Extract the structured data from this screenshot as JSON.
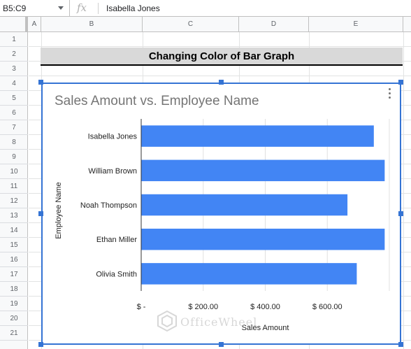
{
  "formula_bar": {
    "name_box": "B5:C9",
    "fx_label": "fx",
    "formula": "Isabella Jones"
  },
  "columns": [
    "A",
    "B",
    "C",
    "D",
    "E"
  ],
  "rows": [
    "1",
    "2",
    "3",
    "4",
    "5",
    "6",
    "7",
    "8",
    "9",
    "10",
    "11",
    "12",
    "13",
    "14",
    "15",
    "16",
    "17",
    "18",
    "19",
    "20",
    "21"
  ],
  "sheet": {
    "title": "Changing Color of Bar Graph"
  },
  "watermark": "OfficeWheel",
  "chart_data": {
    "type": "bar",
    "orientation": "horizontal",
    "title": "Sales Amount vs. Employee Name",
    "xlabel": "Sales Amount",
    "ylabel": "Employee Name",
    "categories": [
      "Isabella Jones",
      "William Brown",
      "Noah Thompson",
      "Ethan Miller",
      "Olivia Smith"
    ],
    "values": [
      750,
      785,
      665,
      785,
      695
    ],
    "xlim": [
      0,
      800
    ],
    "xticks": [
      0,
      200,
      400,
      600
    ],
    "xtick_labels": [
      "$ -",
      "$ 200.00",
      "$ 400.00",
      "$ 600.00"
    ],
    "bar_color": "#4285f4",
    "grid": true,
    "legend": "none"
  }
}
